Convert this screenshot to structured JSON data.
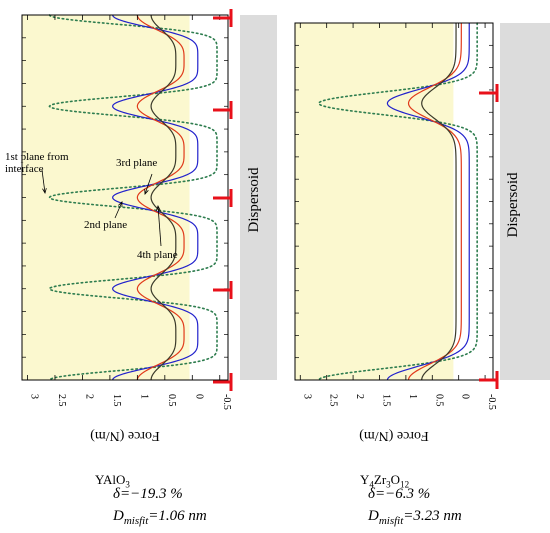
{
  "chart_data": [
    {
      "type": "line",
      "xlabel": "Force (N/m)",
      "x_ticks": [
        "3",
        "2.5",
        "2",
        "1.5",
        "1",
        "0.5",
        "0",
        "-0.5"
      ],
      "xlim": [
        3.1,
        -0.65
      ],
      "ylim": [
        0,
        8
      ],
      "grid": false,
      "background": "#fbf8cf",
      "side_label": "Dispersoid",
      "dislocation_count": 5,
      "series": [
        {
          "name": "1st plane from interface",
          "color": "#2e7d4f",
          "style": "dotted",
          "baseline": -0.45,
          "amplitude": 3.05,
          "sharpness": 5,
          "period": 2
        },
        {
          "name": "2nd plane",
          "color": "#2222cc",
          "style": "solid",
          "baseline": -0.1,
          "amplitude": 1.55,
          "sharpness": 3,
          "period": 2
        },
        {
          "name": "3rd plane",
          "color": "#e03a1a",
          "style": "solid",
          "baseline": 0.15,
          "amplitude": 0.85,
          "sharpness": 2,
          "period": 2
        },
        {
          "name": "4th plane",
          "color": "#3a3a2a",
          "style": "solid",
          "baseline": 0.3,
          "amplitude": 0.45,
          "sharpness": 2,
          "period": 2
        }
      ],
      "annotations": [
        "1st plane from interface",
        "2nd plane",
        "3rd plane",
        "4th plane"
      ]
    },
    {
      "type": "line",
      "xlabel": "Force (N/m)",
      "x_ticks": [
        "3",
        "2.5",
        "2",
        "1.5",
        "1",
        "0.5",
        "0",
        "-0.5"
      ],
      "xlim": [
        3.1,
        -0.65
      ],
      "ylim": [
        0,
        8
      ],
      "grid": false,
      "background": "#fbf8cf",
      "side_label": "Dispersoid",
      "dislocation_count": 2,
      "series": [
        {
          "name": "",
          "color": "#2e7d4f",
          "style": "dotted",
          "baseline": -0.35,
          "amplitude": 3.0,
          "sharpness": 8,
          "period": 6
        },
        {
          "name": "",
          "color": "#2222cc",
          "style": "solid",
          "baseline": -0.2,
          "amplitude": 1.55,
          "sharpness": 5,
          "period": 6
        },
        {
          "name": "",
          "color": "#e03a1a",
          "style": "solid",
          "baseline": -0.05,
          "amplitude": 1.0,
          "sharpness": 4,
          "period": 6
        },
        {
          "name": "",
          "color": "#3a3a2a",
          "style": "solid",
          "baseline": 0.05,
          "amplitude": 0.65,
          "sharpness": 4,
          "period": 6
        }
      ],
      "annotations": []
    }
  ],
  "captions": [
    {
      "compound_html": "YAlO<sub>3</sub>",
      "delta": "δ=−19.3 %",
      "dmisfit_prefix": "D",
      "dmisfit_sub": "misfit",
      "dmisfit_value": "=1.06 nm"
    },
    {
      "compound_html": "Y<sub>4</sub>Zr<sub>3</sub>O<sub>12</sub>",
      "delta": "δ=−6.3 %",
      "dmisfit_prefix": "D",
      "dmisfit_sub": "misfit",
      "dmisfit_value": "=3.23 nm"
    }
  ],
  "colors": {
    "dislocation": "#e8101a",
    "dispersoid": "#dcdcdc",
    "fill": "#fbf8cf"
  }
}
